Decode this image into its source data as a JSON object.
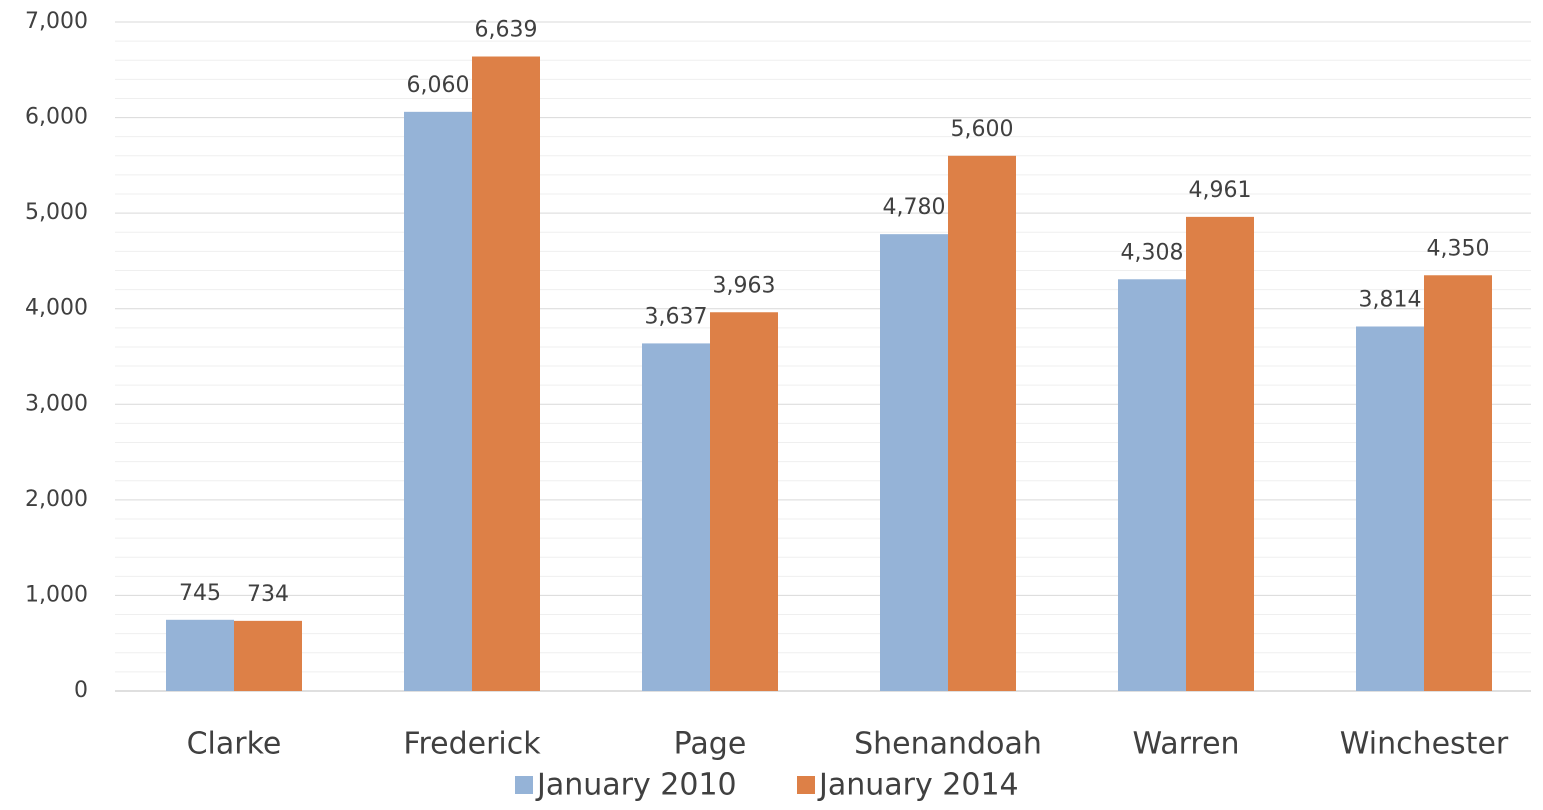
{
  "chart_data": {
    "type": "bar",
    "categories": [
      "Clarke",
      "Frederick",
      "Page",
      "Shenandoah",
      "Warren",
      "Winchester"
    ],
    "series": [
      {
        "name": "January 2010",
        "color": "#95b3d7",
        "values": [
          745,
          6060,
          3637,
          4780,
          4308,
          3814
        ],
        "value_labels": [
          "745",
          "6,060",
          "3,637",
          "4,780",
          "4,308",
          "3,814"
        ]
      },
      {
        "name": "January 2014",
        "color": "#dd8047",
        "values": [
          734,
          6639,
          3963,
          5600,
          4961,
          4350
        ],
        "value_labels": [
          "734",
          "6,639",
          "3,963",
          "5,600",
          "4,961",
          "4,350"
        ]
      }
    ],
    "ylim": [
      0,
      7000
    ],
    "yticks": [
      0,
      {
        "value": 1000,
        "label": "1,000"
      },
      {
        "value": 2000,
        "label": "2,000"
      },
      {
        "value": 3000,
        "label": "3,000"
      },
      {
        "value": 4000,
        "label": "4,000"
      },
      {
        "value": 5000,
        "label": "5,000"
      },
      {
        "value": 6000,
        "label": "6,000"
      },
      {
        "value": 7000,
        "label": "7,000"
      }
    ],
    "minor_yticks": [
      200,
      400,
      600,
      800,
      1200,
      1400,
      1600,
      1800,
      2200,
      2400,
      2600,
      2800,
      3200,
      3400,
      3600,
      3800,
      4200,
      4400,
      4600,
      4800,
      5200,
      5400,
      5600,
      5800,
      6200,
      6400,
      6600,
      6800
    ],
    "grid": true,
    "legend": "bottom"
  }
}
